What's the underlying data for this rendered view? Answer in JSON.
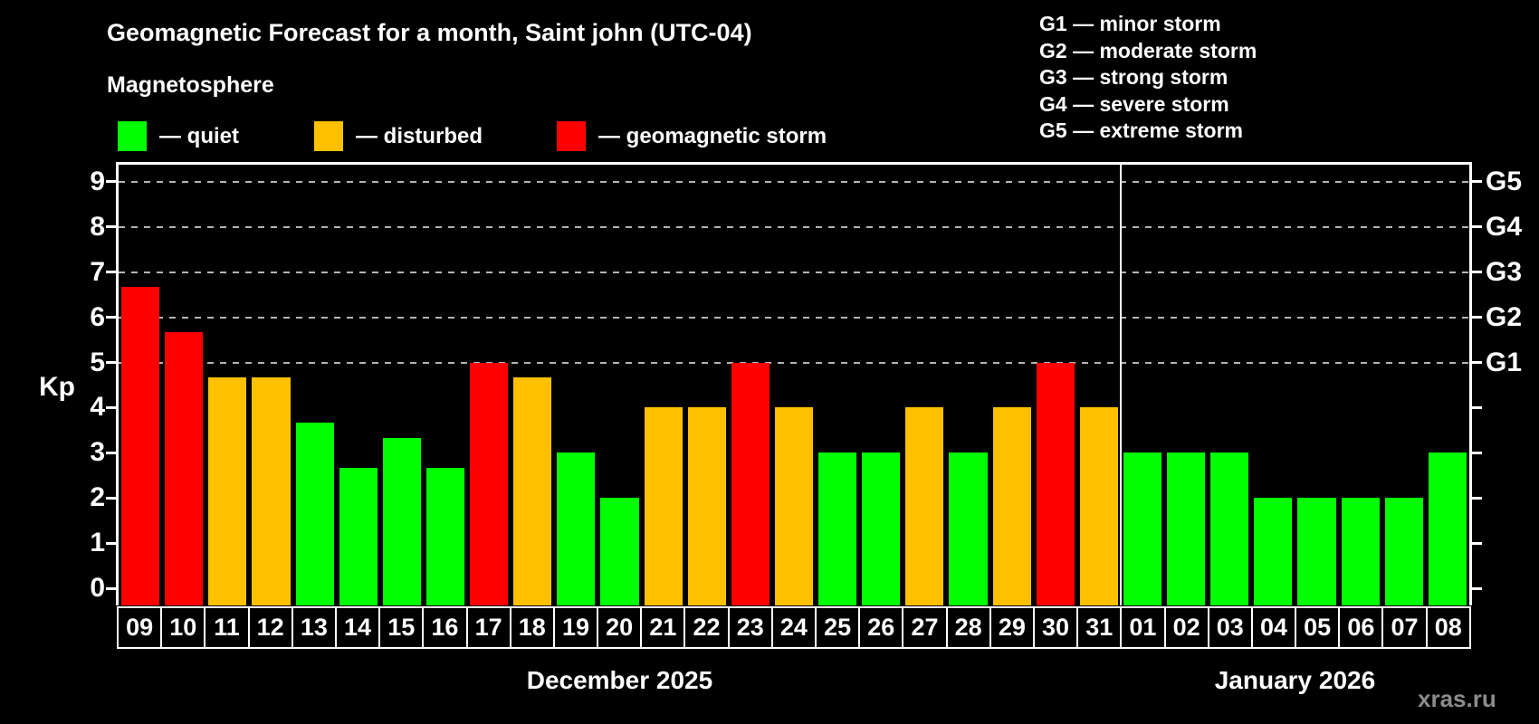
{
  "title": "Geomagnetic Forecast for a month, Saint john (UTC-04)",
  "legend": {
    "heading": "Magnetosphere",
    "items": [
      {
        "status": "quiet",
        "label": "— quiet",
        "color": "#00ff00"
      },
      {
        "status": "disturbed",
        "label": "— disturbed",
        "color": "#ffc000"
      },
      {
        "status": "storm",
        "label": "— geomagnetic storm",
        "color": "#ff0000"
      }
    ]
  },
  "storm_legend": [
    "G1 — minor storm",
    "G2 — moderate storm",
    "G3 — strong storm",
    "G4 — severe storm",
    "G5 — extreme storm"
  ],
  "watermark": "xras.ru",
  "colors": {
    "background": "#000000",
    "text": "#ffffff",
    "gridline": "#b4b4b4",
    "quiet": "#00ff00",
    "disturbed": "#ffc000",
    "storm": "#ff0000",
    "watermark": "#8c8c8c"
  },
  "chart_data": {
    "type": "bar",
    "title": "Geomagnetic Forecast for a month, Saint john (UTC-04)",
    "ylabel": "Kp",
    "ylim": [
      -0.375,
      9.375
    ],
    "y_ticks": [
      0,
      1,
      2,
      3,
      4,
      5,
      6,
      7,
      8,
      9
    ],
    "gridlines": [
      5,
      6,
      7,
      8,
      9
    ],
    "grid": "dashed horizontal at storm levels only",
    "right_axis_labels": [
      {
        "label": "G1",
        "value": 5
      },
      {
        "label": "G2",
        "value": 6
      },
      {
        "label": "G3",
        "value": 7
      },
      {
        "label": "G4",
        "value": 8
      },
      {
        "label": "G5",
        "value": 9
      }
    ],
    "status_colors": {
      "quiet": "#00ff00",
      "disturbed": "#ffc000",
      "storm": "#ff0000"
    },
    "months": [
      {
        "label": "December 2025",
        "days": [
          "09",
          "10",
          "11",
          "12",
          "13",
          "14",
          "15",
          "16",
          "17",
          "18",
          "19",
          "20",
          "21",
          "22",
          "23",
          "24",
          "25",
          "26",
          "27",
          "28",
          "29",
          "30",
          "31"
        ]
      },
      {
        "label": "January 2026",
        "days": [
          "01",
          "02",
          "03",
          "04",
          "05",
          "06",
          "07",
          "08"
        ]
      }
    ],
    "values": [
      6.67,
      5.67,
      4.67,
      4.67,
      3.67,
      2.67,
      3.33,
      2.67,
      5.0,
      4.67,
      3.0,
      2.0,
      4.0,
      4.0,
      5.0,
      4.0,
      3.0,
      3.0,
      4.0,
      3.0,
      4.0,
      5.0,
      4.0,
      3.0,
      3.0,
      3.0,
      2.0,
      2.0,
      2.0,
      2.0,
      3.0
    ],
    "statuses": [
      "storm",
      "storm",
      "disturbed",
      "disturbed",
      "quiet",
      "quiet",
      "quiet",
      "quiet",
      "storm",
      "disturbed",
      "quiet",
      "quiet",
      "disturbed",
      "disturbed",
      "storm",
      "disturbed",
      "quiet",
      "quiet",
      "disturbed",
      "quiet",
      "disturbed",
      "storm",
      "disturbed",
      "quiet",
      "quiet",
      "quiet",
      "quiet",
      "quiet",
      "quiet",
      "quiet",
      "quiet"
    ]
  }
}
